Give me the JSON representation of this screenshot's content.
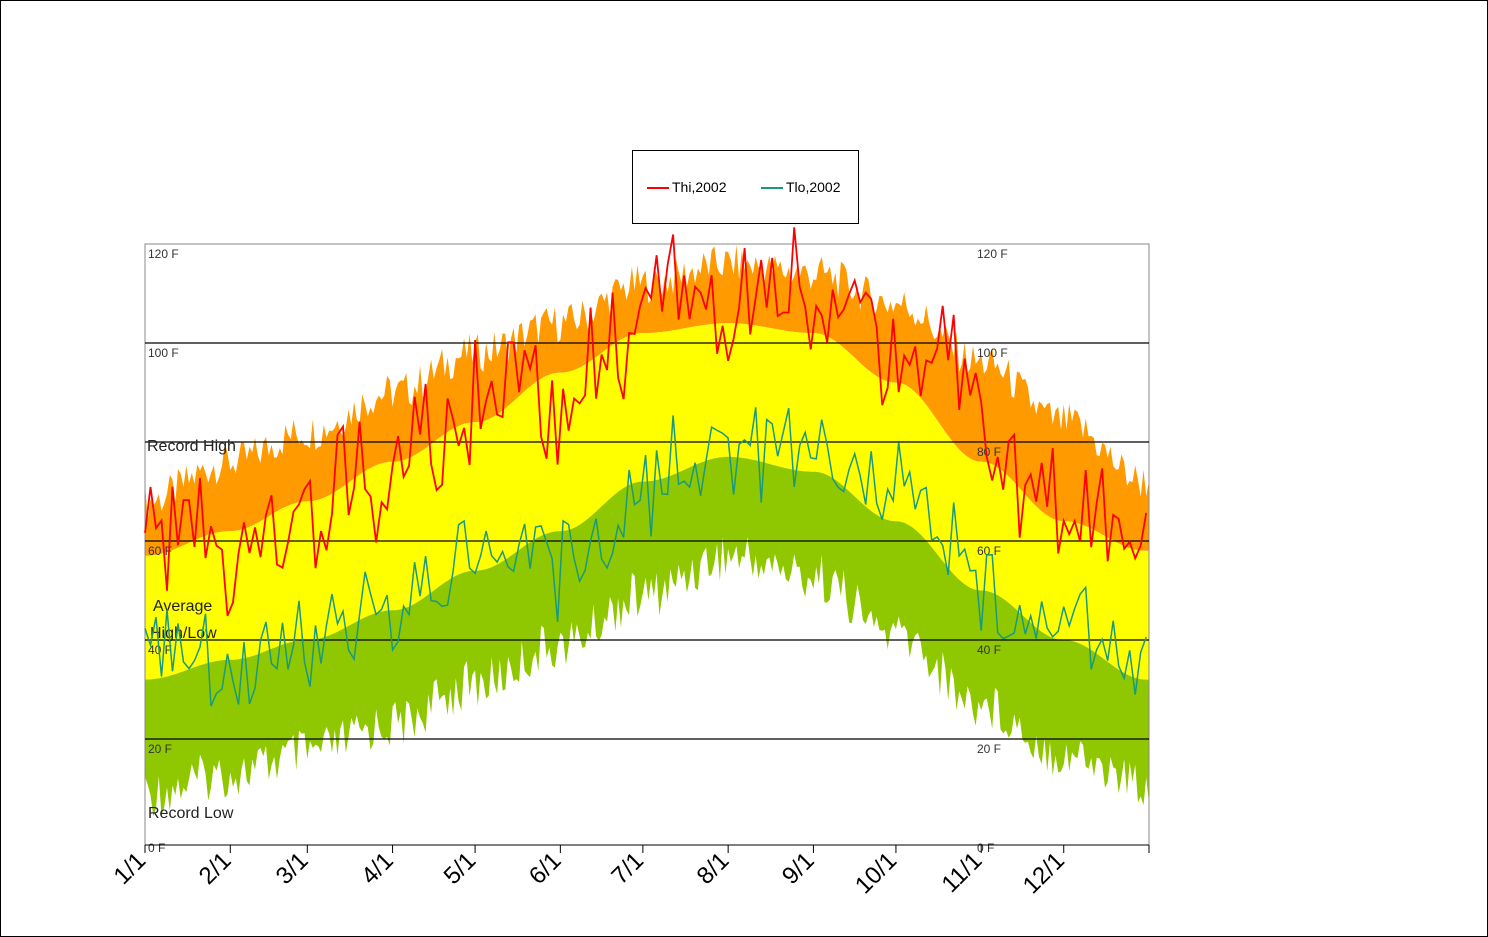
{
  "colors": {
    "record_band": "#ff9a00",
    "average_band": "#ffff00",
    "low_band": "#8fc800",
    "thi_line": "#ff0000",
    "tlo_line": "#1a9a7a"
  },
  "legend": {
    "thi_label": "Thi,2002",
    "tlo_label": "Tlo,2002"
  },
  "chart_data": {
    "type": "area",
    "legend_placement": "top-center",
    "grid": true,
    "ylim": [
      0,
      120
    ],
    "y_ticks": [
      {
        "value": 0,
        "left": "0 F",
        "right": "0 F"
      },
      {
        "value": 20,
        "left": "20 F",
        "right": "20 F"
      },
      {
        "value": 40,
        "left": "40 F",
        "right": "40 F"
      },
      {
        "value": 60,
        "left": "60 F",
        "right": "60 F"
      },
      {
        "value": 80,
        "left": "",
        "right": "80 F"
      },
      {
        "value": 100,
        "left": "100 F",
        "right": "100 F"
      },
      {
        "value": 120,
        "left": "120 F",
        "right": "120 F"
      }
    ],
    "x_tick_labels": [
      "1/1",
      "2/1",
      "3/1",
      "4/1",
      "5/1",
      "6/1",
      "7/1",
      "8/1",
      "9/1",
      "10/1",
      "11/1",
      "12/1"
    ],
    "annotations": {
      "record_high": "Record High",
      "average_line1": "Average",
      "average_line2": "High/Low",
      "record_low": "Record Low"
    },
    "series": [
      {
        "name": "Thi,2002",
        "x": [
          "1/1",
          "1/15",
          "2/1",
          "2/15",
          "3/1",
          "3/15",
          "4/1",
          "4/15",
          "5/1",
          "5/15",
          "6/1",
          "6/15",
          "7/1",
          "7/15",
          "8/1",
          "8/15",
          "9/1",
          "9/15",
          "10/1",
          "10/15",
          "11/1",
          "11/15",
          "12/1",
          "12/15",
          "12/31"
        ],
        "values": [
          60,
          62,
          52,
          60,
          65,
          72,
          70,
          80,
          88,
          90,
          85,
          95,
          103,
          108,
          104,
          110,
          108,
          103,
          96,
          98,
          82,
          74,
          68,
          62,
          60
        ]
      },
      {
        "name": "Tlo,2002",
        "x": [
          "1/1",
          "1/15",
          "2/1",
          "2/15",
          "3/1",
          "3/15",
          "4/1",
          "4/15",
          "5/1",
          "5/15",
          "6/1",
          "6/15",
          "7/1",
          "7/15",
          "8/1",
          "8/15",
          "9/1",
          "9/15",
          "10/1",
          "10/15",
          "11/1",
          "11/15",
          "12/1",
          "12/15",
          "12/31"
        ],
        "values": [
          38,
          36,
          30,
          38,
          42,
          44,
          45,
          52,
          58,
          56,
          55,
          62,
          70,
          76,
          77,
          80,
          78,
          74,
          70,
          66,
          50,
          44,
          42,
          40,
          36
        ]
      },
      {
        "name": "",
        "x": [
          "1/1",
          "2/1",
          "3/1",
          "4/1",
          "5/1",
          "6/1",
          "7/1",
          "8/1",
          "9/1",
          "10/1",
          "11/1",
          "12/1",
          "12/31"
        ],
        "values": [
          68,
          76,
          82,
          90,
          98,
          104,
          112,
          116,
          114,
          108,
          96,
          84,
          72
        ]
      },
      {
        "name": "",
        "x": [
          "1/1",
          "2/1",
          "3/1",
          "4/1",
          "5/1",
          "6/1",
          "7/1",
          "8/1",
          "9/1",
          "10/1",
          "11/1",
          "12/1",
          "12/31"
        ],
        "values": [
          57,
          62,
          68,
          76,
          84,
          94,
          102,
          104,
          102,
          92,
          76,
          64,
          58
        ]
      },
      {
        "name": "",
        "x": [
          "1/1",
          "2/1",
          "3/1",
          "4/1",
          "5/1",
          "6/1",
          "7/1",
          "8/1",
          "9/1",
          "10/1",
          "11/1",
          "12/1",
          "12/31"
        ],
        "values": [
          32,
          36,
          40,
          46,
          54,
          62,
          72,
          77,
          74,
          64,
          50,
          40,
          32
        ]
      },
      {
        "name": "",
        "x": [
          "1/1",
          "2/1",
          "3/1",
          "4/1",
          "5/1",
          "6/1",
          "7/1",
          "8/1",
          "9/1",
          "10/1",
          "11/1",
          "12/1",
          "12/31"
        ],
        "values": [
          14,
          18,
          22,
          28,
          36,
          44,
          54,
          62,
          58,
          46,
          32,
          22,
          16
        ]
      }
    ]
  }
}
